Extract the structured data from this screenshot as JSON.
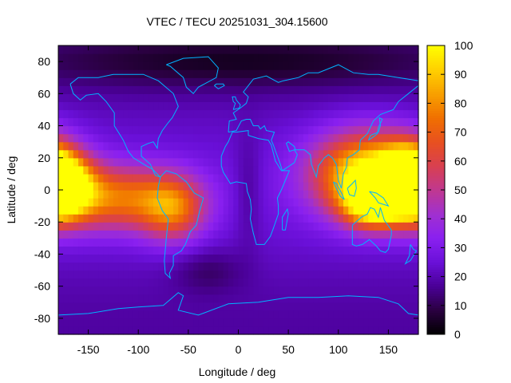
{
  "chart_data": {
    "type": "heatmap",
    "title": "VTEC / TECU 20251031_304.15600",
    "xlabel": "Longitude / deg",
    "ylabel": "Latitude / deg",
    "xlim": [
      -180,
      180
    ],
    "ylim": [
      -90,
      90
    ],
    "xticks": [
      -150,
      -100,
      -50,
      0,
      50,
      100,
      150
    ],
    "yticks": [
      -80,
      -60,
      -40,
      -20,
      0,
      20,
      40,
      60,
      80
    ],
    "colorbar": {
      "range": [
        0,
        100
      ],
      "ticks": [
        0,
        10,
        20,
        30,
        40,
        50,
        60,
        70,
        80,
        90,
        100
      ],
      "palette": [
        "#000000",
        "#2a0040",
        "#4a0096",
        "#6a10d8",
        "#8a20f0",
        "#a030d0",
        "#c03890",
        "#d84050",
        "#e85020",
        "#f07000",
        "#f8a000",
        "#ffd000",
        "#ffff00"
      ]
    },
    "background_level": 22,
    "features": [
      {
        "lon": -178,
        "lat": 2,
        "value": 78,
        "spread_lon": 22,
        "spread_lat": 14
      },
      {
        "lon": -120,
        "lat": -5,
        "value": 48,
        "spread_lon": 45,
        "spread_lat": 14
      },
      {
        "lon": -65,
        "lat": -12,
        "value": 40,
        "spread_lon": 22,
        "spread_lat": 14
      },
      {
        "lon": 130,
        "lat": 10,
        "value": 78,
        "spread_lon": 38,
        "spread_lat": 18
      },
      {
        "lon": 135,
        "lat": -8,
        "value": 70,
        "spread_lon": 20,
        "spread_lat": 10
      },
      {
        "lon": 170,
        "lat": 8,
        "value": 55,
        "spread_lon": 18,
        "spread_lat": 14
      },
      {
        "lon": 0,
        "lat": 80,
        "value": -14,
        "spread_lon": 160,
        "spread_lat": 12
      },
      {
        "lon": -30,
        "lat": -50,
        "value": -9,
        "spread_lon": 25,
        "spread_lat": 10
      },
      {
        "lon": 10,
        "lat": 0,
        "value": -8,
        "spread_lon": 10,
        "spread_lat": 25
      }
    ],
    "grid": false,
    "overlay": "coastlines",
    "overlay_color": "#00b4ff"
  }
}
